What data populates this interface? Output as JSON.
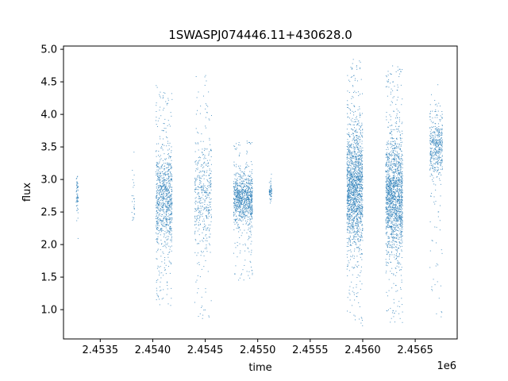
{
  "chart_data": {
    "type": "scatter",
    "title": "1SWASPJ074446.11+430628.0",
    "xlabel": "time",
    "ylabel": "flux",
    "x_offset_label": "1e6",
    "xlim": [
      2453150,
      2456900
    ],
    "ylim": [
      0.55,
      5.05
    ],
    "xticks": [
      2453500,
      2454000,
      2454500,
      2455000,
      2455500,
      2456000,
      2456500
    ],
    "xtick_labels": [
      "2.4535",
      "2.4540",
      "2.4545",
      "2.4550",
      "2.4555",
      "2.4560",
      "2.4565"
    ],
    "yticks": [
      1.0,
      1.5,
      2.0,
      2.5,
      3.0,
      3.5,
      4.0,
      4.5,
      5.0
    ],
    "ytick_labels": [
      "1.0",
      "1.5",
      "2.0",
      "2.5",
      "3.0",
      "3.5",
      "4.0",
      "4.5",
      "5.0"
    ],
    "grid": false,
    "marker_color": "#1f77b4",
    "clusters": [
      {
        "x_start": 2453270,
        "x_end": 2453290,
        "y_center": 2.75,
        "y_min": 2.05,
        "y_max": 3.4,
        "density": "sparse"
      },
      {
        "x_start": 2453800,
        "x_end": 2453830,
        "y_center": 2.6,
        "y_min": 1.7,
        "y_max": 3.45,
        "density": "very sparse"
      },
      {
        "x_start": 2454030,
        "x_end": 2454185,
        "y_center": 2.7,
        "y_min": 1.05,
        "y_max": 4.45,
        "density": "dense"
      },
      {
        "x_start": 2454400,
        "x_end": 2454560,
        "y_center": 2.75,
        "y_min": 0.8,
        "y_max": 4.75,
        "density": "medium"
      },
      {
        "x_start": 2454770,
        "x_end": 2454950,
        "y_center": 2.72,
        "y_min": 1.45,
        "y_max": 3.6,
        "density": "dense"
      },
      {
        "x_start": 2455110,
        "x_end": 2455135,
        "y_center": 2.8,
        "y_min": 2.55,
        "y_max": 3.2,
        "density": "sparse"
      },
      {
        "x_start": 2455850,
        "x_end": 2456000,
        "y_center": 2.85,
        "y_min": 0.75,
        "y_max": 4.85,
        "density": "very dense"
      },
      {
        "x_start": 2456220,
        "x_end": 2456380,
        "y_center": 2.75,
        "y_min": 0.8,
        "y_max": 4.75,
        "density": "very dense"
      },
      {
        "x_start": 2456640,
        "x_end": 2456760,
        "y_center": 3.5,
        "y_min": 0.85,
        "y_max": 4.6,
        "density": "medium"
      }
    ]
  }
}
